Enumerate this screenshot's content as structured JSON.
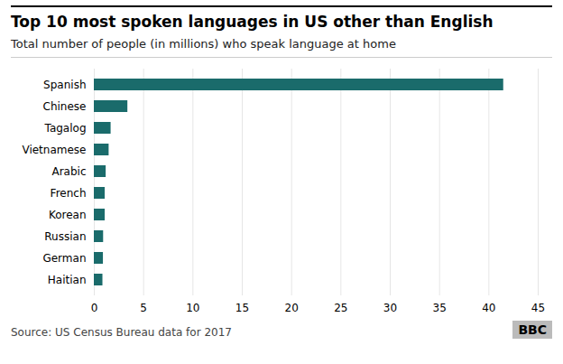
{
  "chart_data": {
    "type": "bar",
    "orientation": "horizontal",
    "title": "Top 10 most spoken languages in US other than English",
    "subtitle": "Total number of people (in millions) who speak language at home",
    "annotations": [
      "Source: US Census Bureau data for 2017",
      "BBC"
    ],
    "categories": [
      "Spanish",
      "Chinese",
      "Tagalog",
      "Vietnamese",
      "Arabic",
      "French",
      "Korean",
      "Russian",
      "German",
      "Haitian"
    ],
    "values": [
      41.5,
      3.4,
      1.7,
      1.5,
      1.2,
      1.1,
      1.1,
      0.94,
      0.92,
      0.87
    ],
    "color": "#1a6b6b",
    "xlim": [
      0,
      45
    ],
    "xticks": [
      0,
      5,
      10,
      15,
      20,
      25,
      30,
      35,
      40,
      45
    ],
    "grid": true
  }
}
